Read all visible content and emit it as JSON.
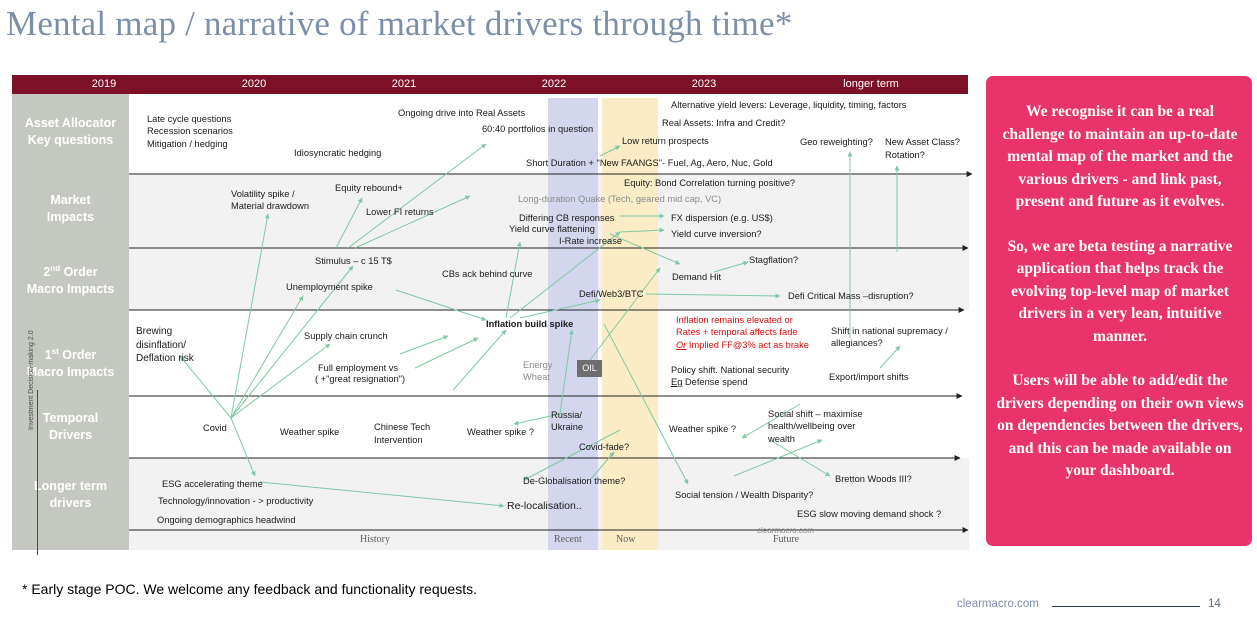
{
  "slide": {
    "title": "Mental map / narrative of market drivers through time*",
    "footnote": "* Early stage POC.  We welcome any feedback and functionality requests.",
    "brand": "clearmacro.com",
    "page_number": "14",
    "watermark": "clearmacro.com",
    "vertical_note": "Investment Decision-making 2.0"
  },
  "timeline": {
    "years": [
      "2019",
      "2020",
      "2021",
      "2022",
      "2023",
      "longer term"
    ],
    "phases": {
      "history": "History",
      "recent": "Recent",
      "now": "Now",
      "future": "Future"
    },
    "colors": {
      "year_bar": "#7d1128",
      "recent": "#d3d6ec",
      "now": "#faecc4",
      "row_label_bg": "#c5c8c1"
    }
  },
  "rows": [
    {
      "label1": "Asset Allocator",
      "label2": "Key questions"
    },
    {
      "label1": "Market",
      "label2": "Impacts"
    },
    {
      "label1": "2nd Order",
      "label2": "Macro Impacts"
    },
    {
      "label1": "1st Order",
      "label2": "Macro Impacts"
    },
    {
      "label1": "Temporal",
      "label2": "Drivers"
    },
    {
      "label1": "Longer term",
      "label2": "drivers"
    }
  ],
  "nodes": {
    "aa_late_cycle": "Late cycle questions",
    "aa_recession": "Recession scenarios",
    "aa_mitigation": "Mitigation / hedging",
    "aa_idiosyncratic": "Idiosyncratic  hedging",
    "aa_real_assets": "Ongoing drive into Real Assets",
    "aa_6040": "60:40 portfolios in question",
    "aa_short_duration": "Short Duration + \"New FAANGS\"- Fuel, Ag, Aero, Nuc, Gold",
    "aa_low_return": "Low return prospects",
    "aa_alt_yield": "Alternative yield levers: Leverage, liquidity, timing, factors",
    "aa_real_assets_infra": "Real Assets: Infra and Credit?",
    "aa_geo_reweight": "Geo reweighting?",
    "aa_new_asset_class": "New Asset Class?",
    "aa_rotation": "Rotation?",
    "mi_vol_spike": "Volatility spike /",
    "mi_material_drawdown": "Material drawdown",
    "mi_equity_rebound": "Equity rebound+",
    "mi_lower_fi": "Lower FI returns",
    "mi_equity_bond_corr": "Equity: Bond Correlation turning positive?",
    "mi_long_duration": "Long-duration Quake (Tech, geared mid cap, VC)",
    "mi_differing_cb": "Differing CB responses",
    "mi_yield_flattening": "Yield curve flattening",
    "mi_fx_dispersion": "FX dispersion (e.g. US$)",
    "mi_yield_inversion": "Yield curve inversion?",
    "so_stimulus": "Stimulus – c 15 T$",
    "so_irate": "I-Rate increase",
    "so_unemployment": "Unemployment spike",
    "so_cbs_ack": "CBs ack behind curve",
    "so_demand_hit": "Demand Hit",
    "so_stagflation": "Stagflation?",
    "so_defi": "Defi/Web3/BTC",
    "so_defi_mass": "Defi Critical Mass –disruption?",
    "fo_brewing": "Brewing",
    "fo_disinflation": "disinflation/",
    "fo_deflation": "Deflation risk",
    "fo_supply_chain": "Supply chain crunch",
    "fo_inflation_build": "Inflation build spike",
    "fo_inflation_elevated": "Inflation remains elevated or",
    "fo_rates_temporal": "Rates + temporal affects fade",
    "fo_or": "Or",
    "fo_implied_ff": " Implied FF@3% act as brake",
    "fo_full_employment": "Full employment vs",
    "fo_great_resignation": "( +\"great resignation\")",
    "fo_energy": "Energy",
    "fo_wheat": "Wheat",
    "fo_oil": "OIL",
    "fo_policy_shift": "Policy shift. National security",
    "fo_eg": "Eg",
    "fo_defense": " Defense spend",
    "fo_supremacy": "Shift in national supremacy /",
    "fo_allegiances": "allegiances?",
    "fo_export_import": "Export/import shifts",
    "td_covid": "Covid",
    "td_weather1": "Weather spike",
    "td_chinese_tech": "Chinese Tech",
    "td_intervention": "Intervention",
    "td_weather2": "Weather spike ?",
    "td_russia": "Russia/",
    "td_ukraine": "Ukraine",
    "td_covid_fade": "Covid-fade?",
    "td_weather3": "Weather spike ?",
    "td_social_shift1": "Social shift – maximise",
    "td_social_shift2": "health/wellbeing over",
    "td_social_shift3": "wealth",
    "lt_esg": "ESG accelerating theme",
    "lt_technology": "Technology/innovation - > productivity",
    "lt_demographics": "Ongoing demographics headwind",
    "lt_deglobalisation": "De-Globalisation theme?",
    "lt_relocalisation": "Re-localisation..",
    "lt_bretton_woods": "Bretton Woods III?",
    "lt_social_tension": "Social tension / Wealth Disparity?",
    "lt_esg_slow": "ESG  slow moving demand shock ?"
  },
  "callout": {
    "paragraph1": "We recognise it can be a real challenge to maintain an up-to-date mental map of the market and the various drivers - and link past, present and future as it evolves.",
    "paragraph2": "So, we are beta testing a narrative application that helps track the evolving top-level map of market drivers in a very lean, intuitive manner.",
    "paragraph3": "Users will be able to add/edit the drivers depending on their own views on dependencies between the drivers, and this can be made available on your dashboard.",
    "bg_color": "#e8336b"
  }
}
